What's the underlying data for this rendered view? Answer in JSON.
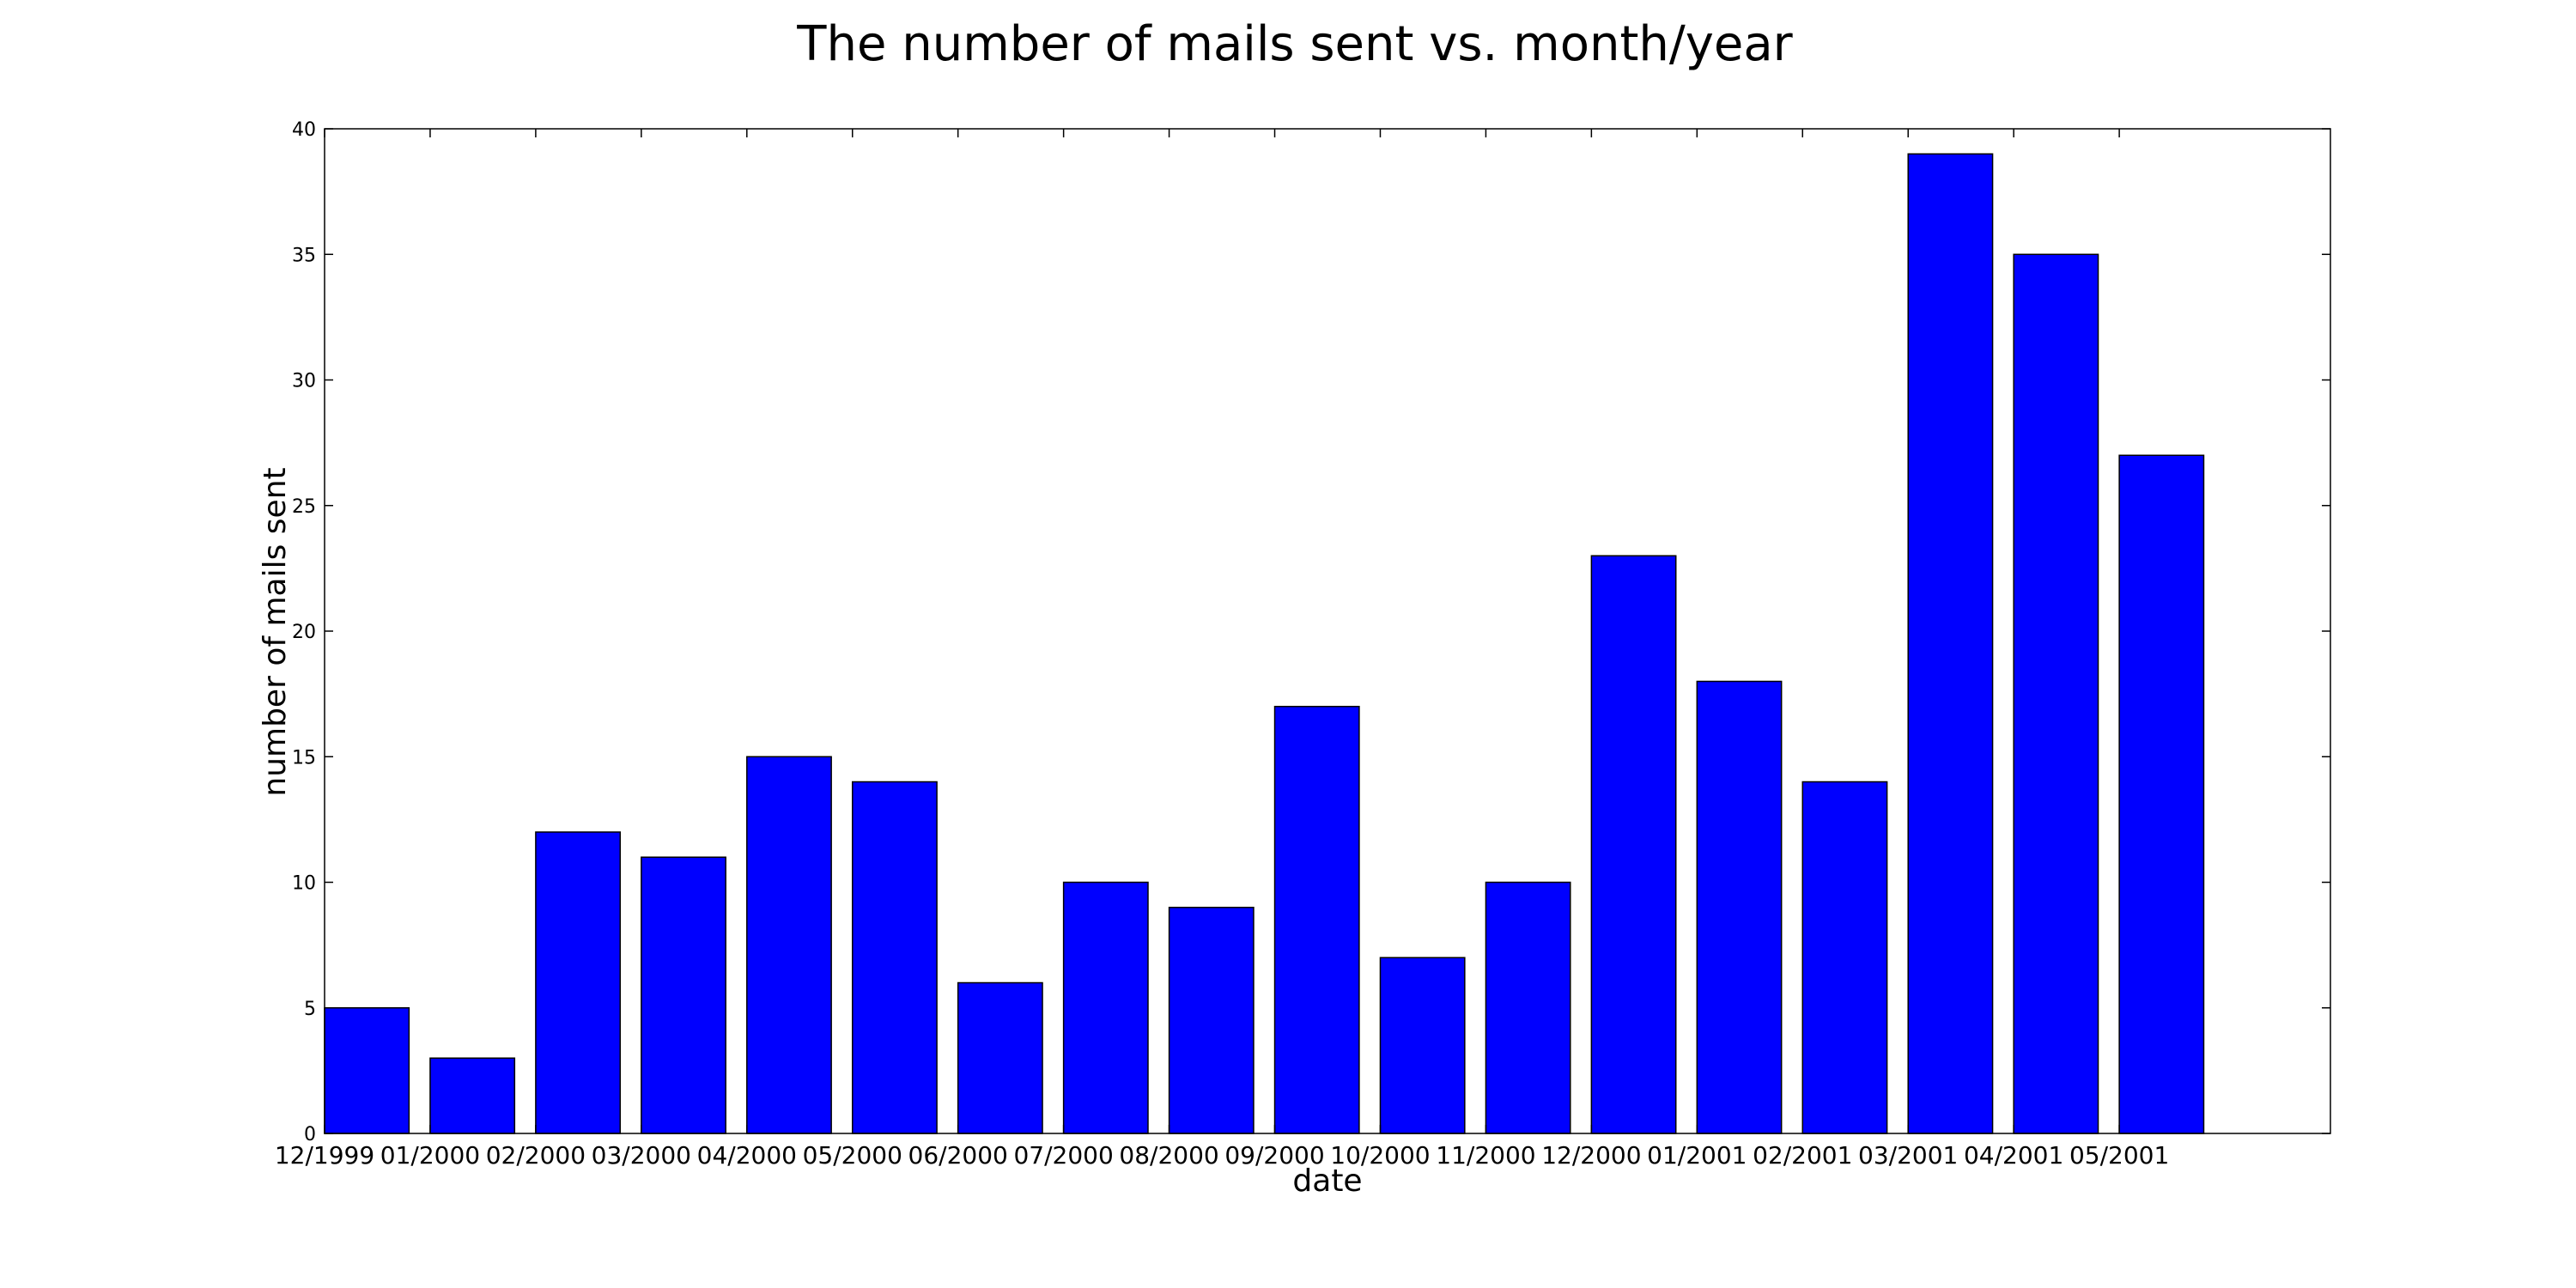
{
  "chart_data": {
    "type": "bar",
    "title": "The number of mails sent vs. month/year",
    "xlabel": "date",
    "ylabel": "number of mails sent",
    "categories": [
      "12/1999",
      "01/2000",
      "02/2000",
      "03/2000",
      "04/2000",
      "05/2000",
      "06/2000",
      "07/2000",
      "08/2000",
      "09/2000",
      "10/2000",
      "11/2000",
      "12/2000",
      "01/2001",
      "02/2001",
      "03/2001",
      "04/2001",
      "05/2001"
    ],
    "values": [
      5,
      3,
      12,
      11,
      15,
      14,
      6,
      10,
      9,
      17,
      7,
      10,
      23,
      18,
      14,
      39,
      35,
      27
    ],
    "ylim": [
      0,
      40
    ],
    "yticks": [
      0,
      5,
      10,
      15,
      20,
      25,
      30,
      35,
      40
    ],
    "grid": false,
    "colors": {
      "bar_fill": "#0000ff",
      "bar_edge": "#000000",
      "axes_edge": "#000000"
    }
  }
}
